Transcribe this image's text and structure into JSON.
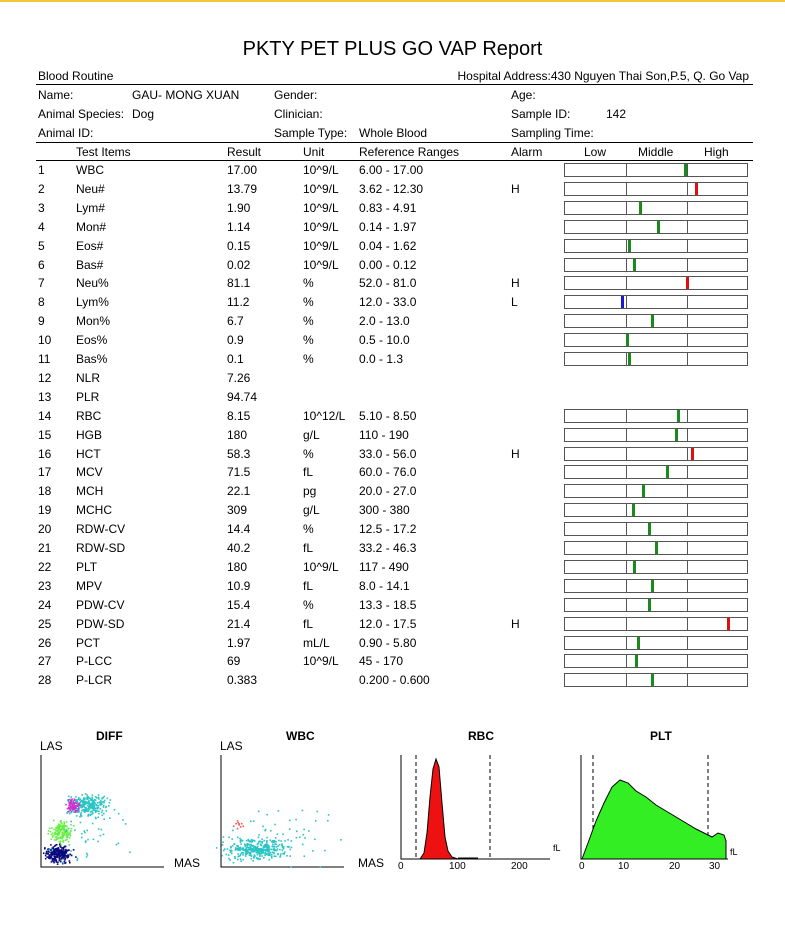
{
  "title": "PKTY PET PLUS GO VAP Report",
  "report_type": "Blood Routine",
  "hospital_address": "Hospital Address:430 Nguyen Thai Son,P.5, Q. Go Vap",
  "patient": {
    "name_label": "Name:",
    "name": "GAU- MONG XUAN",
    "gender_label": "Gender:",
    "age_label": "Age:",
    "species_label": "Animal Species:",
    "species": "Dog",
    "clinician_label": "Clinician:",
    "sample_id_label": "Sample ID:",
    "sample_id": "142",
    "animal_id_label": "Animal ID:",
    "sample_type_label": "Sample Type:",
    "sample_type": "Whole Blood",
    "sampling_time_label": "Sampling Time:"
  },
  "columns": {
    "test_items": "Test Items",
    "result": "Result",
    "unit": "Unit",
    "reference": "Reference Ranges",
    "alarm": "Alarm",
    "low": "Low",
    "middle": "Middle",
    "high": "High"
  },
  "colors": {
    "normal": "#1a8a1a",
    "high": "#e01010",
    "low": "#1a1ad0"
  },
  "rows": [
    {
      "n": "1",
      "item": "WBC",
      "result": "17.00",
      "unit": "10^9/L",
      "ref": "6.00 - 17.00",
      "alarm": "",
      "level": 0.66,
      "status": "normal"
    },
    {
      "n": "2",
      "item": "Neu#",
      "result": "13.79",
      "unit": "10^9/L",
      "ref": "3.62 - 12.30",
      "alarm": "H",
      "level": 0.72,
      "status": "high"
    },
    {
      "n": "3",
      "item": "Lym#",
      "result": "1.90",
      "unit": "10^9/L",
      "ref": "0.83 - 4.91",
      "alarm": "",
      "level": 0.41,
      "status": "normal"
    },
    {
      "n": "4",
      "item": "Mon#",
      "result": "1.14",
      "unit": "10^9/L",
      "ref": "0.14 - 1.97",
      "alarm": "",
      "level": 0.51,
      "status": "normal"
    },
    {
      "n": "5",
      "item": "Eos#",
      "result": "0.15",
      "unit": "10^9/L",
      "ref": "0.04 - 1.62",
      "alarm": "",
      "level": 0.35,
      "status": "normal"
    },
    {
      "n": "6",
      "item": "Bas#",
      "result": "0.02",
      "unit": "10^9/L",
      "ref": "0.00 - 0.12",
      "alarm": "",
      "level": 0.38,
      "status": "normal"
    },
    {
      "n": "7",
      "item": "Neu%",
      "result": "81.1",
      "unit": "%",
      "ref": "52.0 - 81.0",
      "alarm": "H",
      "level": 0.67,
      "status": "high"
    },
    {
      "n": "8",
      "item": "Lym%",
      "result": "11.2",
      "unit": "%",
      "ref": "12.0 - 33.0",
      "alarm": "L",
      "level": 0.31,
      "status": "low"
    },
    {
      "n": "9",
      "item": "Mon%",
      "result": "6.7",
      "unit": "%",
      "ref": "2.0 - 13.0",
      "alarm": "",
      "level": 0.48,
      "status": "normal"
    },
    {
      "n": "10",
      "item": "Eos%",
      "result": "0.9",
      "unit": "%",
      "ref": "0.5 - 10.0",
      "alarm": "",
      "level": 0.34,
      "status": "normal"
    },
    {
      "n": "11",
      "item": "Bas%",
      "result": "0.1",
      "unit": "%",
      "ref": "0.0 - 1.3",
      "alarm": "",
      "level": 0.35,
      "status": "normal"
    },
    {
      "n": "12",
      "item": "NLR",
      "result": "7.26",
      "unit": "",
      "ref": "",
      "alarm": "",
      "level": null,
      "status": "normal"
    },
    {
      "n": "13",
      "item": "PLR",
      "result": "94.74",
      "unit": "",
      "ref": "",
      "alarm": "",
      "level": null,
      "status": "normal"
    },
    {
      "n": "14",
      "item": "RBC",
      "result": "8.15",
      "unit": "10^12/L",
      "ref": "5.10 - 8.50",
      "alarm": "",
      "level": 0.62,
      "status": "normal"
    },
    {
      "n": "15",
      "item": "HGB",
      "result": "180",
      "unit": "g/L",
      "ref": "110 - 190",
      "alarm": "",
      "level": 0.61,
      "status": "normal"
    },
    {
      "n": "16",
      "item": "HCT",
      "result": "58.3",
      "unit": "%",
      "ref": "33.0 - 56.0",
      "alarm": "H",
      "level": 0.7,
      "status": "high"
    },
    {
      "n": "17",
      "item": "MCV",
      "result": "71.5",
      "unit": "fL",
      "ref": "60.0 - 76.0",
      "alarm": "",
      "level": 0.56,
      "status": "normal"
    },
    {
      "n": "18",
      "item": "MCH",
      "result": "22.1",
      "unit": "pg",
      "ref": "20.0 - 27.0",
      "alarm": "",
      "level": 0.43,
      "status": "normal"
    },
    {
      "n": "19",
      "item": "MCHC",
      "result": "309",
      "unit": "g/L",
      "ref": "300 - 380",
      "alarm": "",
      "level": 0.37,
      "status": "normal"
    },
    {
      "n": "20",
      "item": "RDW-CV",
      "result": "14.4",
      "unit": "%",
      "ref": "12.5 - 17.2",
      "alarm": "",
      "level": 0.46,
      "status": "normal"
    },
    {
      "n": "21",
      "item": "RDW-SD",
      "result": "40.2",
      "unit": "fL",
      "ref": "33.2 - 46.3",
      "alarm": "",
      "level": 0.5,
      "status": "normal"
    },
    {
      "n": "22",
      "item": "PLT",
      "result": "180",
      "unit": "10^9/L",
      "ref": "117 - 490",
      "alarm": "",
      "level": 0.38,
      "status": "normal"
    },
    {
      "n": "23",
      "item": "MPV",
      "result": "10.9",
      "unit": "fL",
      "ref": "8.0 - 14.1",
      "alarm": "",
      "level": 0.48,
      "status": "normal"
    },
    {
      "n": "24",
      "item": "PDW-CV",
      "result": "15.4",
      "unit": "%",
      "ref": "13.3 - 18.5",
      "alarm": "",
      "level": 0.46,
      "status": "normal"
    },
    {
      "n": "25",
      "item": "PDW-SD",
      "result": "21.4",
      "unit": "fL",
      "ref": "12.0 - 17.5",
      "alarm": "H",
      "level": 0.9,
      "status": "high"
    },
    {
      "n": "26",
      "item": "PCT",
      "result": "1.97",
      "unit": "mL/L",
      "ref": "0.90 - 5.80",
      "alarm": "",
      "level": 0.4,
      "status": "normal"
    },
    {
      "n": "27",
      "item": "P-LCC",
      "result": "69",
      "unit": "10^9/L",
      "ref": "45 - 170",
      "alarm": "",
      "level": 0.39,
      "status": "normal"
    },
    {
      "n": "28",
      "item": "P-LCR",
      "result": "0.383",
      "unit": "",
      "ref": "0.200 - 0.600",
      "alarm": "",
      "level": 0.48,
      "status": "normal"
    }
  ],
  "graphs": {
    "diff": {
      "title": "DIFF",
      "y_label": "LAS",
      "x_label": "MAS"
    },
    "wbc": {
      "title": "WBC",
      "y_label": "LAS",
      "x_label": "MAS"
    },
    "rbc": {
      "title": "RBC",
      "unit": "fL",
      "ticks": [
        "0",
        "100",
        "200"
      ]
    },
    "plt": {
      "title": "PLT",
      "unit": "fL",
      "ticks": [
        "0",
        "10",
        "20",
        "30"
      ]
    }
  }
}
